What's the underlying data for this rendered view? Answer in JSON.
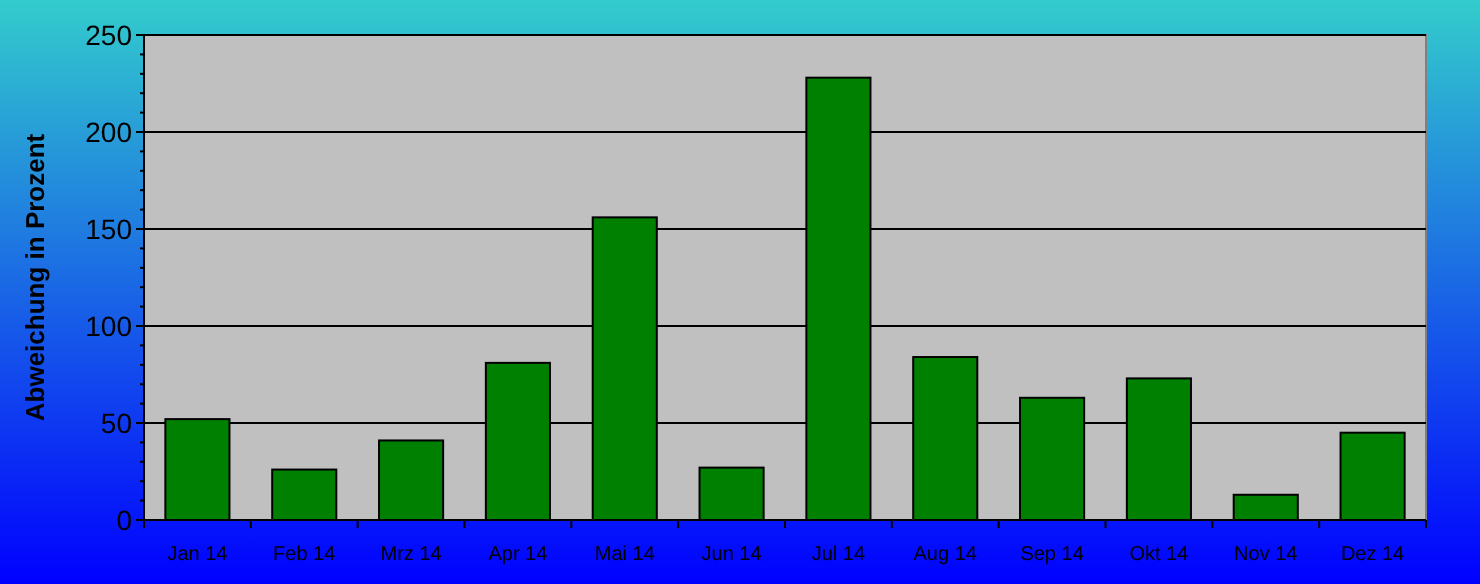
{
  "chart_data": {
    "type": "bar",
    "ylabel": "Abweichung in Prozent",
    "categories": [
      "Jan 14",
      "Feb 14",
      "Mrz 14",
      "Apr 14",
      "Mai 14",
      "Jun 14",
      "Jul 14",
      "Aug 14",
      "Sep 14",
      "Okt 14",
      "Nov 14",
      "Dez 14"
    ],
    "values": [
      52,
      26,
      41,
      81,
      156,
      27,
      228,
      84,
      63,
      73,
      13,
      45
    ],
    "color": "#008000",
    "ylim": [
      0,
      250
    ],
    "yticks": [
      0,
      {
        "value": 10,
        "label": null
      },
      {
        "value": 20,
        "label": null
      },
      {
        "value": 30,
        "label": null
      },
      {
        "value": 40,
        "label": null
      },
      50,
      {
        "value": 60,
        "label": null
      },
      {
        "value": 70,
        "label": null
      },
      {
        "value": 80,
        "label": null
      },
      {
        "value": 90,
        "label": null
      },
      100,
      {
        "value": 110,
        "label": null
      },
      {
        "value": 120,
        "label": null
      },
      {
        "value": 130,
        "label": null
      },
      {
        "value": 140,
        "label": null
      },
      150,
      {
        "value": 160,
        "label": null
      },
      {
        "value": 170,
        "label": null
      },
      {
        "value": 180,
        "label": null
      },
      {
        "value": 190,
        "label": null
      },
      200,
      {
        "value": 210,
        "label": null
      },
      {
        "value": 220,
        "label": null
      },
      {
        "value": 230,
        "label": null
      },
      {
        "value": 240,
        "label": null
      },
      250
    ],
    "grid": "y"
  }
}
